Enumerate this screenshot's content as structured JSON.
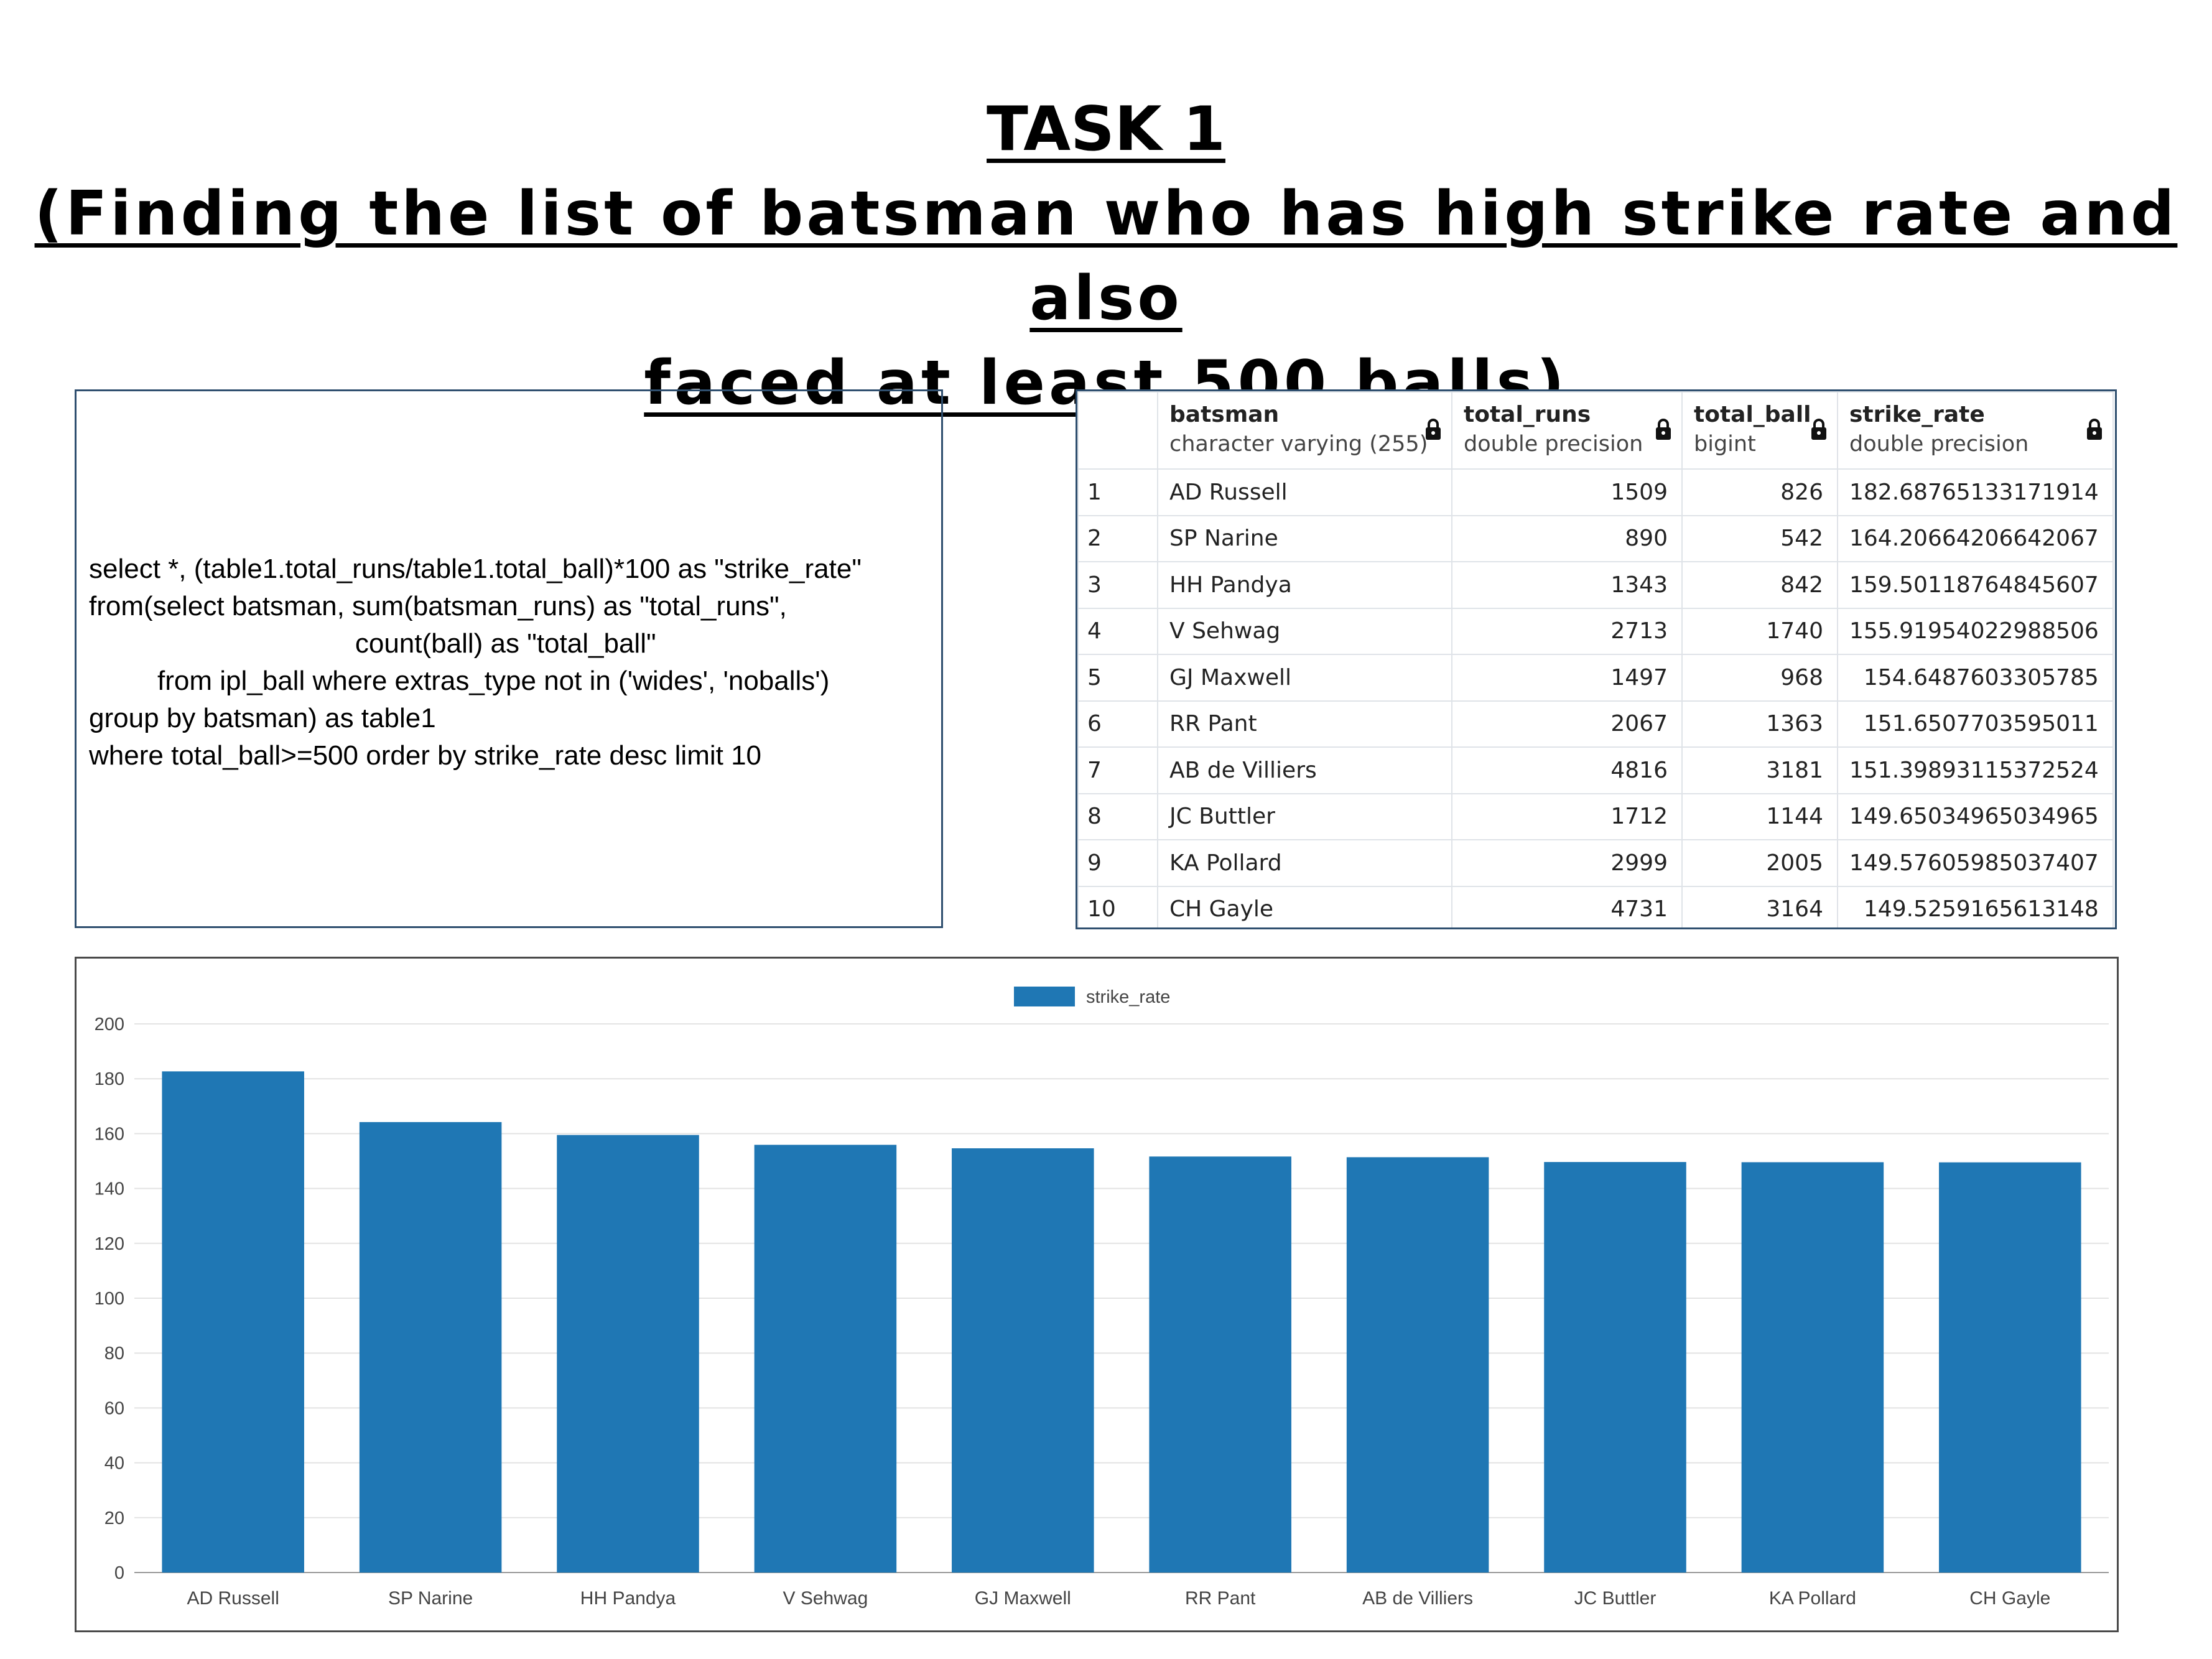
{
  "title": {
    "line1": "TASK 1",
    "line2": "(Finding the list of batsman who has high strike rate and also",
    "line3": "faced at least 500 balls)"
  },
  "query": {
    "text": "select *, (table1.total_runs/table1.total_ball)*100 as \"strike_rate\"\nfrom(select batsman, sum(batsman_runs) as \"total_runs\",\n                                   count(ball) as \"total_ball\"\n         from ipl_ball where extras_type not in ('wides', 'noballs')\ngroup by batsman) as table1\nwhere total_ball>=500 order by strike_rate desc limit 10"
  },
  "result_grid": {
    "columns": [
      {
        "name": "batsman",
        "type": "character varying (255)",
        "icon": "lock-icon"
      },
      {
        "name": "total_runs",
        "type": "double precision",
        "icon": "lock-icon"
      },
      {
        "name": "total_ball",
        "type": "bigint",
        "icon": "lock-icon"
      },
      {
        "name": "strike_rate",
        "type": "double precision",
        "icon": "lock-icon"
      }
    ],
    "rows": [
      {
        "n": "1",
        "batsman": "AD Russell",
        "total_runs": "1509",
        "total_ball": "826",
        "strike_rate": "182.68765133171914"
      },
      {
        "n": "2",
        "batsman": "SP Narine",
        "total_runs": "890",
        "total_ball": "542",
        "strike_rate": "164.20664206642067"
      },
      {
        "n": "3",
        "batsman": "HH Pandya",
        "total_runs": "1343",
        "total_ball": "842",
        "strike_rate": "159.50118764845607"
      },
      {
        "n": "4",
        "batsman": "V Sehwag",
        "total_runs": "2713",
        "total_ball": "1740",
        "strike_rate": "155.91954022988506"
      },
      {
        "n": "5",
        "batsman": "GJ Maxwell",
        "total_runs": "1497",
        "total_ball": "968",
        "strike_rate": "154.6487603305785"
      },
      {
        "n": "6",
        "batsman": "RR Pant",
        "total_runs": "2067",
        "total_ball": "1363",
        "strike_rate": "151.6507703595011"
      },
      {
        "n": "7",
        "batsman": "AB de Villiers",
        "total_runs": "4816",
        "total_ball": "3181",
        "strike_rate": "151.39893115372524"
      },
      {
        "n": "8",
        "batsman": "JC Buttler",
        "total_runs": "1712",
        "total_ball": "1144",
        "strike_rate": "149.65034965034965"
      },
      {
        "n": "9",
        "batsman": "KA Pollard",
        "total_runs": "2999",
        "total_ball": "2005",
        "strike_rate": "149.57605985037407"
      },
      {
        "n": "10",
        "batsman": "CH Gayle",
        "total_runs": "4731",
        "total_ball": "3164",
        "strike_rate": "149.5259165613148"
      }
    ]
  },
  "chart_data": {
    "type": "bar",
    "categories": [
      "AD Russell",
      "SP Narine",
      "HH Pandya",
      "V Sehwag",
      "GJ Maxwell",
      "RR Pant",
      "AB de Villiers",
      "JC Buttler",
      "KA Pollard",
      "CH Gayle"
    ],
    "series": [
      {
        "name": "strike_rate",
        "values": [
          182.69,
          164.21,
          159.5,
          155.92,
          154.65,
          151.65,
          151.4,
          149.65,
          149.58,
          149.53
        ]
      }
    ],
    "title": "",
    "xlabel": "",
    "ylabel": "",
    "ylim": [
      0,
      200
    ],
    "yticks": [
      0,
      20,
      40,
      60,
      80,
      100,
      120,
      140,
      160,
      180,
      200
    ],
    "grid": true,
    "legend": "top-center",
    "bar_color": "#1f77b4"
  }
}
